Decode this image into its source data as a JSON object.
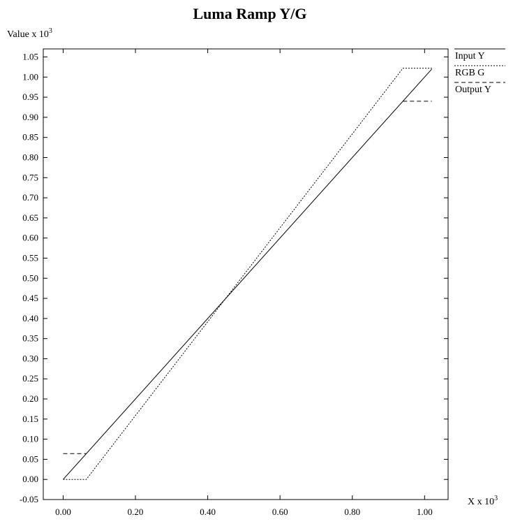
{
  "chart_data": {
    "type": "line",
    "title": "Luma Ramp Y/G",
    "ylabel_text": "Value x 10",
    "ylabel_exp": "3",
    "xlabel_text": "X x 10",
    "xlabel_exp": "3",
    "xlim": [
      -0.055,
      1.065
    ],
    "ylim": [
      -0.05,
      1.07
    ],
    "xticks": [
      0.0,
      0.2,
      0.4,
      0.6,
      0.8,
      1.0
    ],
    "yticks": [
      -0.05,
      0.0,
      0.05,
      0.1,
      0.15,
      0.2,
      0.25,
      0.3,
      0.35,
      0.4,
      0.45,
      0.5,
      0.55,
      0.6,
      0.65,
      0.7,
      0.75,
      0.8,
      0.85,
      0.9,
      0.95,
      1.0,
      1.05
    ],
    "grid": false,
    "legend_position": "right-outside-top",
    "series": [
      {
        "name": "Input Y",
        "style": "solid",
        "color": "#000000",
        "x": [
          0.0,
          1.02
        ],
        "y": [
          0.0,
          1.02
        ]
      },
      {
        "name": "RGB G",
        "style": "dotted",
        "color": "#000000",
        "x": [
          0.0,
          0.064,
          0.94,
          1.02
        ],
        "y": [
          0.0,
          0.0,
          1.022,
          1.022
        ]
      },
      {
        "name": "Output Y",
        "style": "dashed",
        "color": "#000000",
        "x": [
          0.0,
          0.064,
          null,
          0.94,
          1.02
        ],
        "y": [
          0.064,
          0.064,
          null,
          0.94,
          0.94
        ]
      }
    ]
  }
}
